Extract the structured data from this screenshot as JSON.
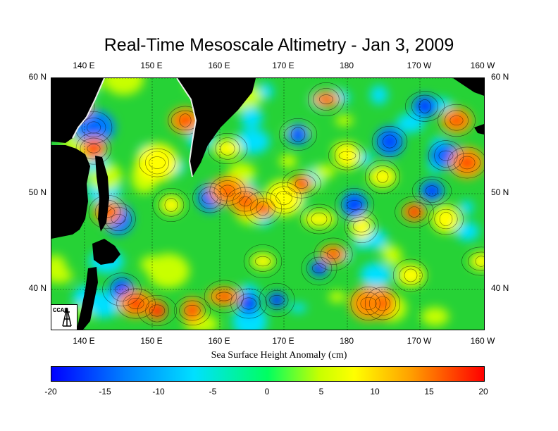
{
  "title": "Real-Time Mesoscale Altimetry - Jan 3, 2009",
  "lon_labels": [
    "140 E",
    "150 E",
    "160 E",
    "170 E",
    "180",
    "170 W",
    "160 W"
  ],
  "lat_labels": [
    "60 N",
    "50 N",
    "40 N"
  ],
  "colorbar": {
    "caption": "Sea Surface Height Anomaly (cm)",
    "ticks": [
      "-20",
      "-15",
      "-10",
      "-5",
      "0",
      "5",
      "10",
      "15",
      "20"
    ],
    "colors": [
      "#0000ff",
      "#0080ff",
      "#00e0ff",
      "#00ff60",
      "#c8ff00",
      "#ffff00",
      "#ffa000",
      "#ff0000"
    ]
  },
  "logo": {
    "text": "CCAR"
  }
}
